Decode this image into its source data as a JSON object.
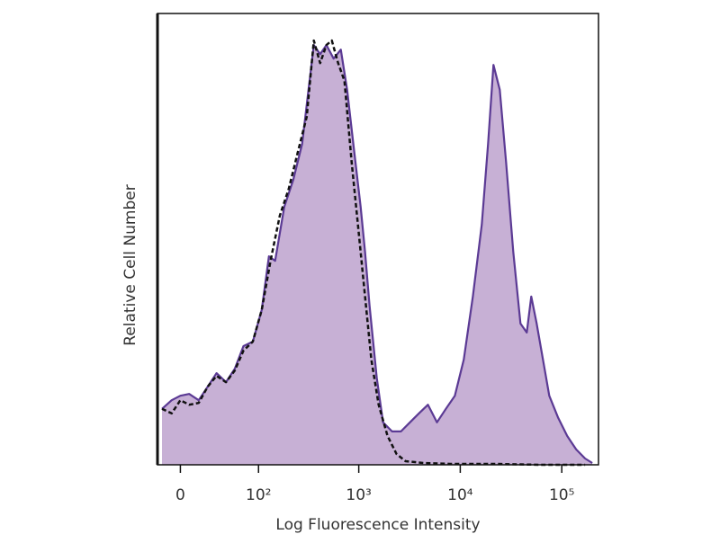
{
  "chart_data": {
    "type": "histogram-overlay",
    "xlabel": "Log Fluorescence Intensity",
    "ylabel": "Relative Cell Number",
    "xscale": "biexponential",
    "xlim": [
      -19,
      230000
    ],
    "ylim": [
      0,
      100
    ],
    "xticks": [
      0,
      {
        "value": 100,
        "label": "10²"
      },
      {
        "value": 1000,
        "label": "10³"
      },
      {
        "value": 10000,
        "label": "10⁴"
      },
      {
        "value": 100000,
        "label": "10⁵"
      }
    ],
    "series": [
      {
        "color": "#5b3a94",
        "fill": "#c7b0d5",
        "dash": false,
        "x": [
          -15,
          -7,
          0,
          7,
          15,
          23,
          32,
          43,
          55,
          69,
          87,
          108,
          128,
          148,
          183,
          225,
          276,
          319,
          360,
          416,
          480,
          565,
          665,
          768,
          885,
          1043,
          1154,
          1278,
          1505,
          1735,
          2128,
          2605,
          3197,
          3919,
          4804,
          5887,
          7215,
          8850,
          10830,
          13300,
          16300,
          18800,
          21240,
          24500,
          28250,
          33280,
          39150,
          45170,
          50020,
          56530,
          65210,
          75230,
          92180,
          113000,
          138600,
          169800,
          199800
        ],
        "values": [
          12.4,
          14.3,
          15.3,
          15.7,
          14.3,
          17.3,
          20.3,
          18.3,
          21.3,
          26.3,
          27.3,
          34.3,
          46.2,
          45.2,
          57.2,
          63.1,
          71.1,
          83.1,
          93.0,
          91.0,
          93.0,
          90.0,
          92.0,
          83.1,
          71.1,
          57.2,
          47.2,
          35.3,
          19.3,
          9.4,
          7.4,
          7.4,
          9.4,
          11.4,
          13.3,
          9.4,
          12.4,
          15.3,
          23.3,
          37.3,
          53.2,
          71.1,
          88.6,
          83.1,
          67.1,
          47.2,
          31.3,
          29.3,
          37.3,
          31.3,
          23.3,
          15.3,
          10.4,
          6.4,
          3.4,
          1.4,
          0.4
        ]
      },
      {
        "color": "#111111",
        "dash": true,
        "x": [
          -15,
          -7,
          0,
          7,
          15,
          23,
          32,
          43,
          55,
          69,
          87,
          108,
          133,
          165,
          203,
          249,
          306,
          360,
          416,
          480,
          542,
          626,
          722,
          850,
          1001,
          1154,
          1331,
          1568,
          1922,
          2358,
          2889,
          4340,
          7990,
          22120,
          61350,
          169800
        ],
        "values": [
          12.4,
          11.4,
          14.3,
          13.3,
          13.7,
          17.3,
          19.7,
          18.3,
          20.9,
          25.3,
          27.3,
          34.3,
          45.2,
          55.2,
          61.2,
          69.1,
          77.1,
          94.0,
          89.0,
          93.0,
          94.0,
          89.0,
          85.1,
          67.1,
          51.2,
          37.3,
          23.3,
          13.3,
          6.4,
          2.4,
          0.8,
          0.4,
          0.2,
          0.2,
          0,
          0
        ]
      }
    ]
  }
}
